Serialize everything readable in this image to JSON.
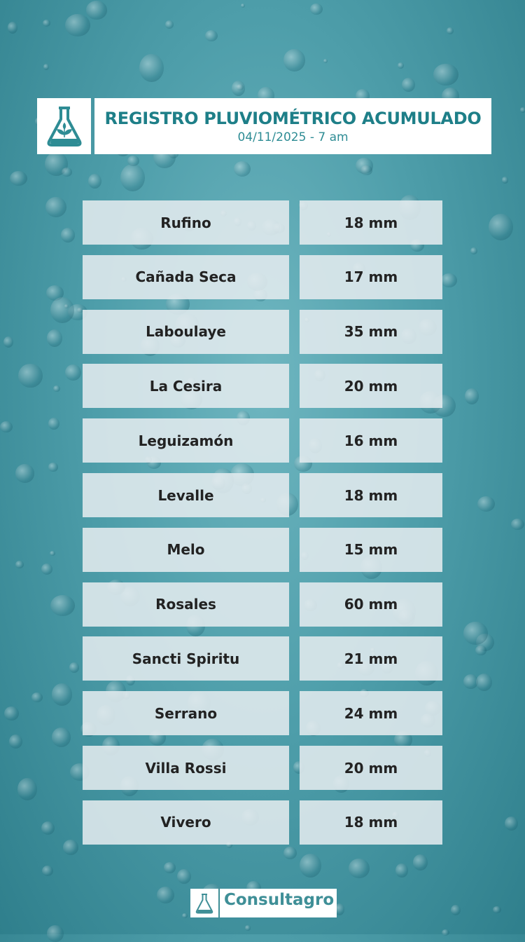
{
  "header": {
    "title": "REGISTRO PLUVIOMÉTRICO ACUMULADO",
    "subtitle": "04/11/2025 - 7 am",
    "logo_icon": "flask-plant-icon"
  },
  "rows": [
    {
      "location": "Rufino",
      "value": "18 mm"
    },
    {
      "location": "Cañada Seca",
      "value": "17 mm"
    },
    {
      "location": "Laboulaye",
      "value": "35 mm"
    },
    {
      "location": "La Cesira",
      "value": "20 mm"
    },
    {
      "location": "Leguizamón",
      "value": "16 mm"
    },
    {
      "location": "Levalle",
      "value": "18 mm"
    },
    {
      "location": "Melo",
      "value": "15 mm"
    },
    {
      "location": "Rosales",
      "value": "60 mm"
    },
    {
      "location": "Sancti Spiritu",
      "value": "21 mm"
    },
    {
      "location": "Serrano",
      "value": "24 mm"
    },
    {
      "location": "Villa Rossi",
      "value": "20 mm"
    },
    {
      "location": "Vivero",
      "value": "18 mm"
    }
  ],
  "footer": {
    "brand": "Consultagro"
  },
  "colors": {
    "accent": "#1e7f88",
    "background": "#4e9eaa"
  }
}
